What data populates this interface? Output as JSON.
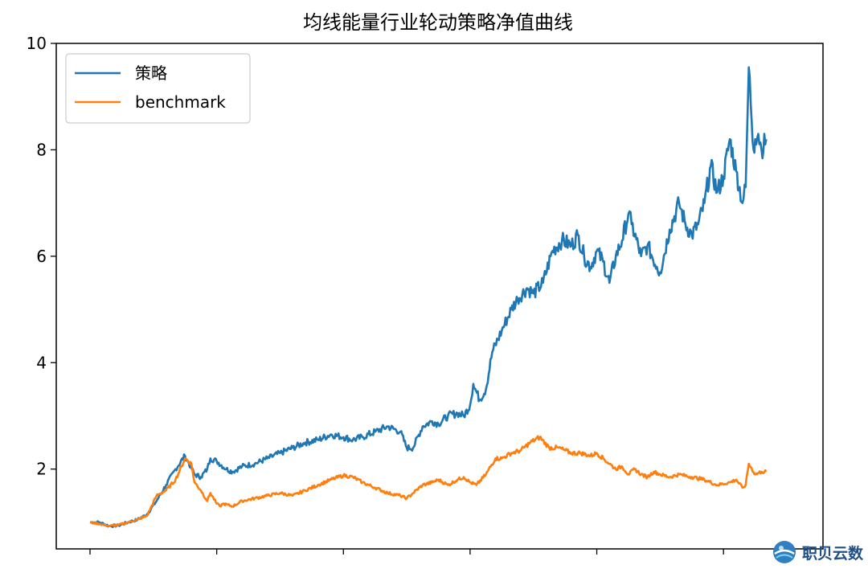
{
  "chart_data": {
    "type": "line",
    "title": "均线能量行业轮动策略净值曲线",
    "xlabel": "",
    "ylabel": "",
    "xlim": [
      0,
      2200
    ],
    "ylim": [
      0.5,
      10
    ],
    "yticks": [
      2,
      4,
      6,
      8,
      10
    ],
    "yticklabels": [
      "2",
      "4",
      "6",
      "8",
      "10"
    ],
    "xticks": [
      0,
      400,
      800,
      1200,
      1600,
      2000
    ],
    "legend_position": "upper-left",
    "series": [
      {
        "name": "策略",
        "color": "#1f77b4",
        "x": [
          0,
          30,
          60,
          90,
          120,
          150,
          180,
          210,
          240,
          270,
          300,
          330,
          350,
          370,
          380,
          400,
          430,
          450,
          480,
          520,
          560,
          600,
          640,
          680,
          720,
          760,
          800,
          830,
          860,
          900,
          940,
          980,
          1000,
          1020,
          1050,
          1080,
          1100,
          1130,
          1160,
          1180,
          1200,
          1210,
          1230,
          1250,
          1270,
          1300,
          1330,
          1350,
          1380,
          1400,
          1430,
          1460,
          1490,
          1520,
          1540,
          1560,
          1580,
          1600,
          1620,
          1640,
          1660,
          1680,
          1700,
          1710,
          1740,
          1760,
          1790,
          1800,
          1830,
          1860,
          1880,
          1900,
          1920,
          1940,
          1960,
          1980,
          2000,
          2020,
          2040,
          2060,
          2070,
          2080,
          2095,
          2100,
          2110,
          2120,
          2135
        ],
        "y": [
          1.0,
          1.0,
          0.93,
          0.94,
          1.0,
          1.05,
          1.15,
          1.4,
          1.7,
          2.0,
          2.25,
          1.9,
          1.85,
          2.0,
          2.2,
          2.15,
          2.0,
          1.95,
          2.05,
          2.1,
          2.2,
          2.3,
          2.4,
          2.5,
          2.55,
          2.65,
          2.6,
          2.55,
          2.6,
          2.7,
          2.8,
          2.7,
          2.4,
          2.4,
          2.8,
          2.9,
          2.85,
          3.0,
          3.05,
          3.0,
          3.2,
          3.6,
          3.3,
          3.5,
          4.2,
          4.6,
          5.0,
          5.2,
          5.4,
          5.3,
          5.5,
          6.1,
          6.3,
          6.2,
          6.4,
          6.0,
          5.8,
          6.1,
          5.9,
          5.5,
          6.0,
          6.3,
          6.8,
          6.6,
          6.0,
          6.2,
          5.8,
          5.7,
          6.5,
          7.0,
          6.6,
          6.4,
          6.6,
          7.0,
          7.7,
          7.2,
          7.5,
          8.2,
          7.6,
          7.0,
          7.3,
          9.55,
          8.0,
          8.2,
          8.3,
          8.0,
          8.2
        ]
      },
      {
        "name": "benchmark",
        "color": "#ff7f0e",
        "x": [
          0,
          30,
          60,
          90,
          120,
          150,
          180,
          210,
          240,
          270,
          300,
          320,
          330,
          350,
          370,
          380,
          400,
          410,
          420,
          450,
          480,
          520,
          560,
          600,
          640,
          680,
          720,
          760,
          800,
          830,
          860,
          900,
          940,
          980,
          1000,
          1020,
          1050,
          1080,
          1100,
          1130,
          1160,
          1180,
          1200,
          1220,
          1250,
          1280,
          1300,
          1330,
          1360,
          1390,
          1420,
          1450,
          1480,
          1500,
          1520,
          1550,
          1580,
          1600,
          1620,
          1640,
          1660,
          1680,
          1700,
          1720,
          1740,
          1760,
          1780,
          1800,
          1830,
          1860,
          1900,
          1940,
          1980,
          2020,
          2040,
          2060,
          2070,
          2080,
          2100,
          2120,
          2135
        ],
        "y": [
          1.0,
          0.97,
          0.93,
          0.95,
          1.0,
          1.05,
          1.12,
          1.5,
          1.6,
          1.8,
          2.2,
          2.1,
          1.75,
          1.6,
          1.4,
          1.55,
          1.35,
          1.3,
          1.35,
          1.3,
          1.4,
          1.45,
          1.5,
          1.55,
          1.5,
          1.6,
          1.7,
          1.8,
          1.88,
          1.85,
          1.75,
          1.65,
          1.55,
          1.5,
          1.45,
          1.55,
          1.7,
          1.75,
          1.8,
          1.7,
          1.8,
          1.85,
          1.75,
          1.7,
          1.9,
          2.2,
          2.2,
          2.3,
          2.35,
          2.5,
          2.6,
          2.4,
          2.4,
          2.35,
          2.3,
          2.3,
          2.25,
          2.3,
          2.2,
          2.1,
          2.0,
          2.05,
          1.9,
          2.0,
          1.9,
          1.85,
          1.95,
          1.9,
          1.85,
          1.9,
          1.85,
          1.8,
          1.7,
          1.75,
          1.8,
          1.65,
          1.7,
          2.1,
          1.9,
          1.95,
          1.95
        ]
      }
    ]
  },
  "watermark": {
    "text": "职贝云数",
    "icon": "globe-logo-icon"
  }
}
